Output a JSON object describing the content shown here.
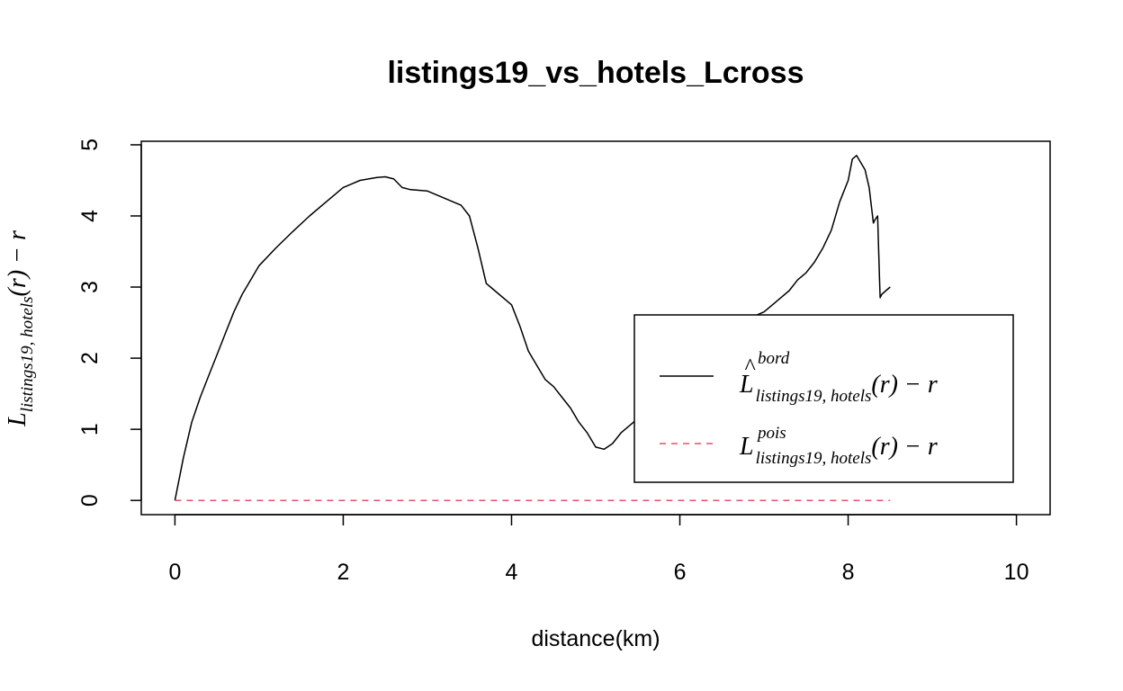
{
  "chart_data": {
    "type": "line",
    "title": "listings19_vs_hotels_Lcross",
    "xlabel": "distance(km)",
    "ylabel": {
      "main": "L",
      "sub": "listings19, hotels",
      "tail": "(r) − r"
    },
    "xlim": [
      -0.4,
      10.4
    ],
    "ylim": [
      -0.2,
      5.05
    ],
    "x_ticks": [
      0,
      2,
      4,
      6,
      8,
      10
    ],
    "y_ticks": [
      0,
      1,
      2,
      3,
      4,
      5
    ],
    "grid": false,
    "legend_position": "right",
    "series": [
      {
        "name": {
          "main": "L",
          "hat": "^",
          "sup": "bord",
          "sub": "listings19, hotels",
          "tail": "(r) − r"
        },
        "color": "#000000",
        "dash": "solid",
        "x": [
          0,
          0.1,
          0.2,
          0.3,
          0.4,
          0.5,
          0.6,
          0.7,
          0.8,
          0.9,
          1.0,
          1.2,
          1.4,
          1.6,
          1.8,
          2.0,
          2.1,
          2.2,
          2.3,
          2.4,
          2.5,
          2.6,
          2.7,
          2.8,
          3.0,
          3.2,
          3.4,
          3.5,
          3.6,
          3.7,
          3.8,
          4.0,
          4.1,
          4.2,
          4.3,
          4.4,
          4.5,
          4.6,
          4.7,
          4.8,
          4.9,
          5.0,
          5.1,
          5.2,
          5.3,
          5.4,
          5.5,
          5.6,
          5.7,
          5.8,
          5.9,
          6.0,
          6.1,
          6.2,
          6.3,
          6.4,
          6.5,
          6.6,
          6.7,
          6.8,
          6.9,
          7.0,
          7.1,
          7.2,
          7.3,
          7.4,
          7.5,
          7.6,
          7.7,
          7.8,
          7.9,
          8.0,
          8.05,
          8.1,
          8.15,
          8.2,
          8.25,
          8.3,
          8.32,
          8.35,
          8.37,
          8.38,
          8.4,
          8.45,
          8.5
        ],
        "y": [
          0,
          0.6,
          1.1,
          1.45,
          1.75,
          2.05,
          2.35,
          2.65,
          2.9,
          3.1,
          3.3,
          3.55,
          3.78,
          4.0,
          4.2,
          4.4,
          4.45,
          4.5,
          4.52,
          4.54,
          4.55,
          4.52,
          4.4,
          4.37,
          4.35,
          4.25,
          4.15,
          4.0,
          3.55,
          3.05,
          2.95,
          2.75,
          2.45,
          2.1,
          1.9,
          1.7,
          1.6,
          1.45,
          1.3,
          1.1,
          0.95,
          0.75,
          0.72,
          0.8,
          0.95,
          1.05,
          1.15,
          1.25,
          1.35,
          1.5,
          1.62,
          1.65,
          1.55,
          1.55,
          1.7,
          1.85,
          2.1,
          2.3,
          2.5,
          2.55,
          2.6,
          2.65,
          2.75,
          2.85,
          2.95,
          3.1,
          3.2,
          3.35,
          3.55,
          3.8,
          4.2,
          4.5,
          4.8,
          4.85,
          4.75,
          4.65,
          4.4,
          3.9,
          3.95,
          4.0,
          3.2,
          2.85,
          2.9,
          2.95,
          3.0
        ]
      },
      {
        "name": {
          "main": "L",
          "sup": "pois",
          "sub": "listings19, hotels",
          "tail": "(r) − r"
        },
        "color": "#df536b",
        "dash": "dashed",
        "x": [
          0,
          8.5
        ],
        "y": [
          0,
          0
        ]
      }
    ]
  }
}
